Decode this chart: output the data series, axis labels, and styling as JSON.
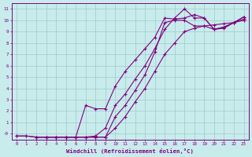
{
  "title": "",
  "xlabel": "Windchill (Refroidissement éolien,°C)",
  "ylabel": "",
  "bg_color": "#c8ecec",
  "line_color": "#800080",
  "grid_color": "#a0c8c8",
  "xlim": [
    -0.5,
    23.5
  ],
  "ylim": [
    -0.5,
    11.5
  ],
  "xticks": [
    0,
    1,
    2,
    3,
    4,
    5,
    6,
    7,
    8,
    9,
    10,
    11,
    12,
    13,
    14,
    15,
    16,
    17,
    18,
    19,
    20,
    21,
    22,
    23
  ],
  "yticks": [
    0,
    1,
    2,
    3,
    4,
    5,
    6,
    7,
    8,
    9,
    10,
    11
  ],
  "ytick_labels": [
    "-0",
    "1",
    "2",
    "3",
    "4",
    "5",
    "6",
    "7",
    "8",
    "9",
    "10",
    "11"
  ],
  "line1_x": [
    0,
    1,
    2,
    3,
    4,
    5,
    6,
    7,
    8,
    9,
    10,
    11,
    12,
    13,
    14,
    15,
    16,
    17,
    18,
    19,
    20,
    21,
    22,
    23
  ],
  "line1_y": [
    -0.2,
    -0.2,
    -0.3,
    -0.3,
    -0.3,
    -0.3,
    -0.3,
    -0.3,
    -0.3,
    -0.3,
    0.5,
    1.5,
    2.8,
    4.0,
    5.5,
    7.0,
    8.0,
    9.0,
    9.3,
    9.5,
    9.6,
    9.7,
    9.8,
    10.0
  ],
  "line2_x": [
    0,
    1,
    2,
    3,
    4,
    5,
    6,
    7,
    8,
    9,
    10,
    11,
    12,
    13,
    14,
    15,
    16,
    17,
    18,
    19,
    20,
    21,
    22,
    23
  ],
  "line2_y": [
    -0.2,
    -0.2,
    -0.3,
    -0.3,
    -0.3,
    -0.3,
    -0.3,
    -0.3,
    -0.3,
    -0.3,
    1.5,
    2.5,
    3.8,
    5.2,
    7.2,
    9.8,
    10.0,
    10.0,
    9.5,
    9.5,
    9.2,
    9.3,
    9.8,
    10.1
  ],
  "line3_x": [
    2,
    3,
    4,
    5,
    6,
    7,
    8,
    9,
    10,
    11,
    12,
    13,
    14,
    15,
    16,
    17,
    18,
    19,
    20,
    21,
    22,
    23
  ],
  "line3_y": [
    -0.3,
    -0.3,
    -0.3,
    -0.3,
    -0.3,
    -0.3,
    -0.2,
    0.5,
    2.5,
    3.5,
    4.8,
    6.0,
    7.5,
    9.2,
    10.2,
    11.0,
    10.2,
    10.2,
    9.2,
    9.4,
    9.8,
    10.3
  ],
  "line4_x": [
    2,
    3,
    4,
    5,
    6,
    7,
    8,
    9,
    10,
    11,
    12,
    13,
    14,
    15,
    16,
    17,
    18,
    19,
    20,
    21,
    22,
    23
  ],
  "line4_y": [
    -0.3,
    -0.3,
    -0.3,
    -0.3,
    -0.3,
    2.5,
    2.2,
    2.2,
    4.2,
    5.5,
    6.5,
    7.5,
    8.5,
    10.2,
    10.1,
    10.2,
    10.5,
    10.2,
    9.2,
    9.4,
    9.8,
    10.3
  ]
}
